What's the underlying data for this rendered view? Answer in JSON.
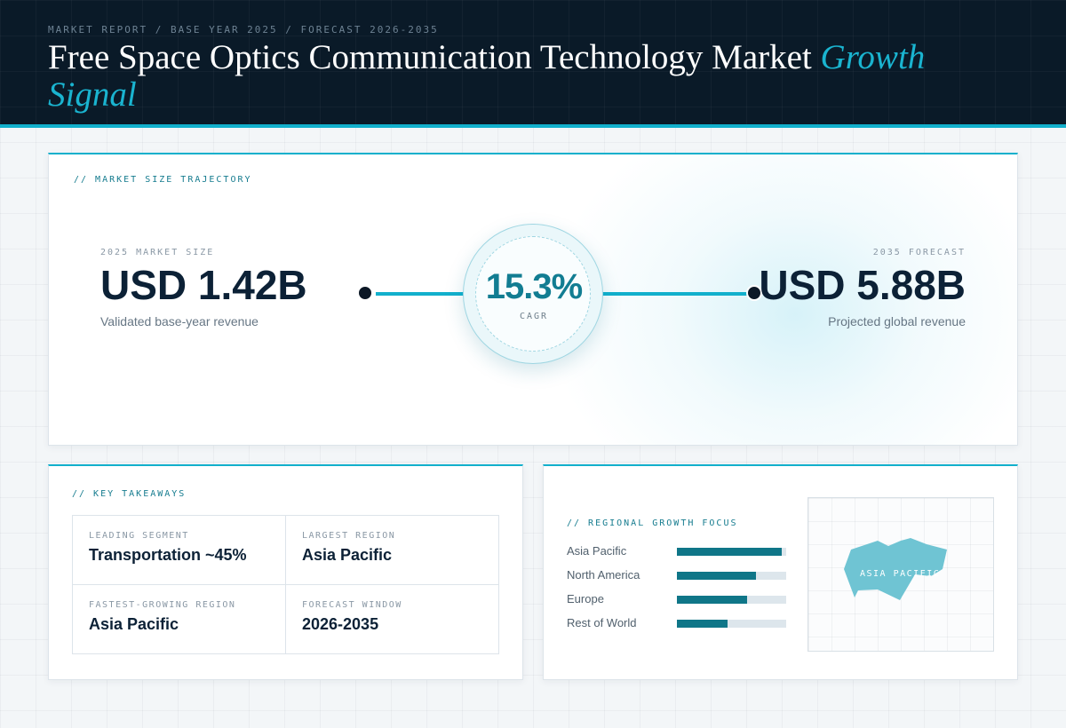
{
  "header": {
    "eyebrow": "MARKET REPORT / BASE YEAR 2025 / FORECAST 2026-2035",
    "title_main": "Free Space Optics Communication Technology Market ",
    "title_accent": "Growth Signal"
  },
  "trajectory": {
    "section_label": "// MARKET SIZE TRAJECTORY",
    "start": {
      "label": "2025 MARKET SIZE",
      "value": "USD 1.42B",
      "caption": "Validated base-year revenue"
    },
    "cagr": {
      "value": "15.3%",
      "label": "CAGR"
    },
    "end": {
      "label": "2035 FORECAST",
      "value": "USD 5.88B",
      "caption": "Projected global revenue"
    }
  },
  "takeaways": {
    "section_label": "// KEY TAKEAWAYS",
    "items": [
      {
        "key": "LEADING SEGMENT",
        "value": "Transportation ~45%"
      },
      {
        "key": "LARGEST REGION",
        "value": "Asia Pacific"
      },
      {
        "key": "FASTEST-GROWING REGION",
        "value": "Asia Pacific"
      },
      {
        "key": "FORECAST WINDOW",
        "value": "2026-2035"
      }
    ]
  },
  "regional": {
    "section_label": "// REGIONAL GROWTH FOCUS",
    "map_label": "ASIA PACIFIC",
    "map_color": "#6fc4d3"
  },
  "colors": {
    "accent": "#12b0cc",
    "bar_fill": "#0f7688",
    "bar_track": "#dde6ec",
    "header_bg": "#0a1a28"
  },
  "chart_data": {
    "type": "bar",
    "orientation": "horizontal",
    "categories": [
      "Asia Pacific",
      "North America",
      "Europe",
      "Rest of World"
    ],
    "values": [
      0.96,
      0.72,
      0.64,
      0.46
    ],
    "xlim": [
      0,
      1
    ],
    "grid": false
  }
}
